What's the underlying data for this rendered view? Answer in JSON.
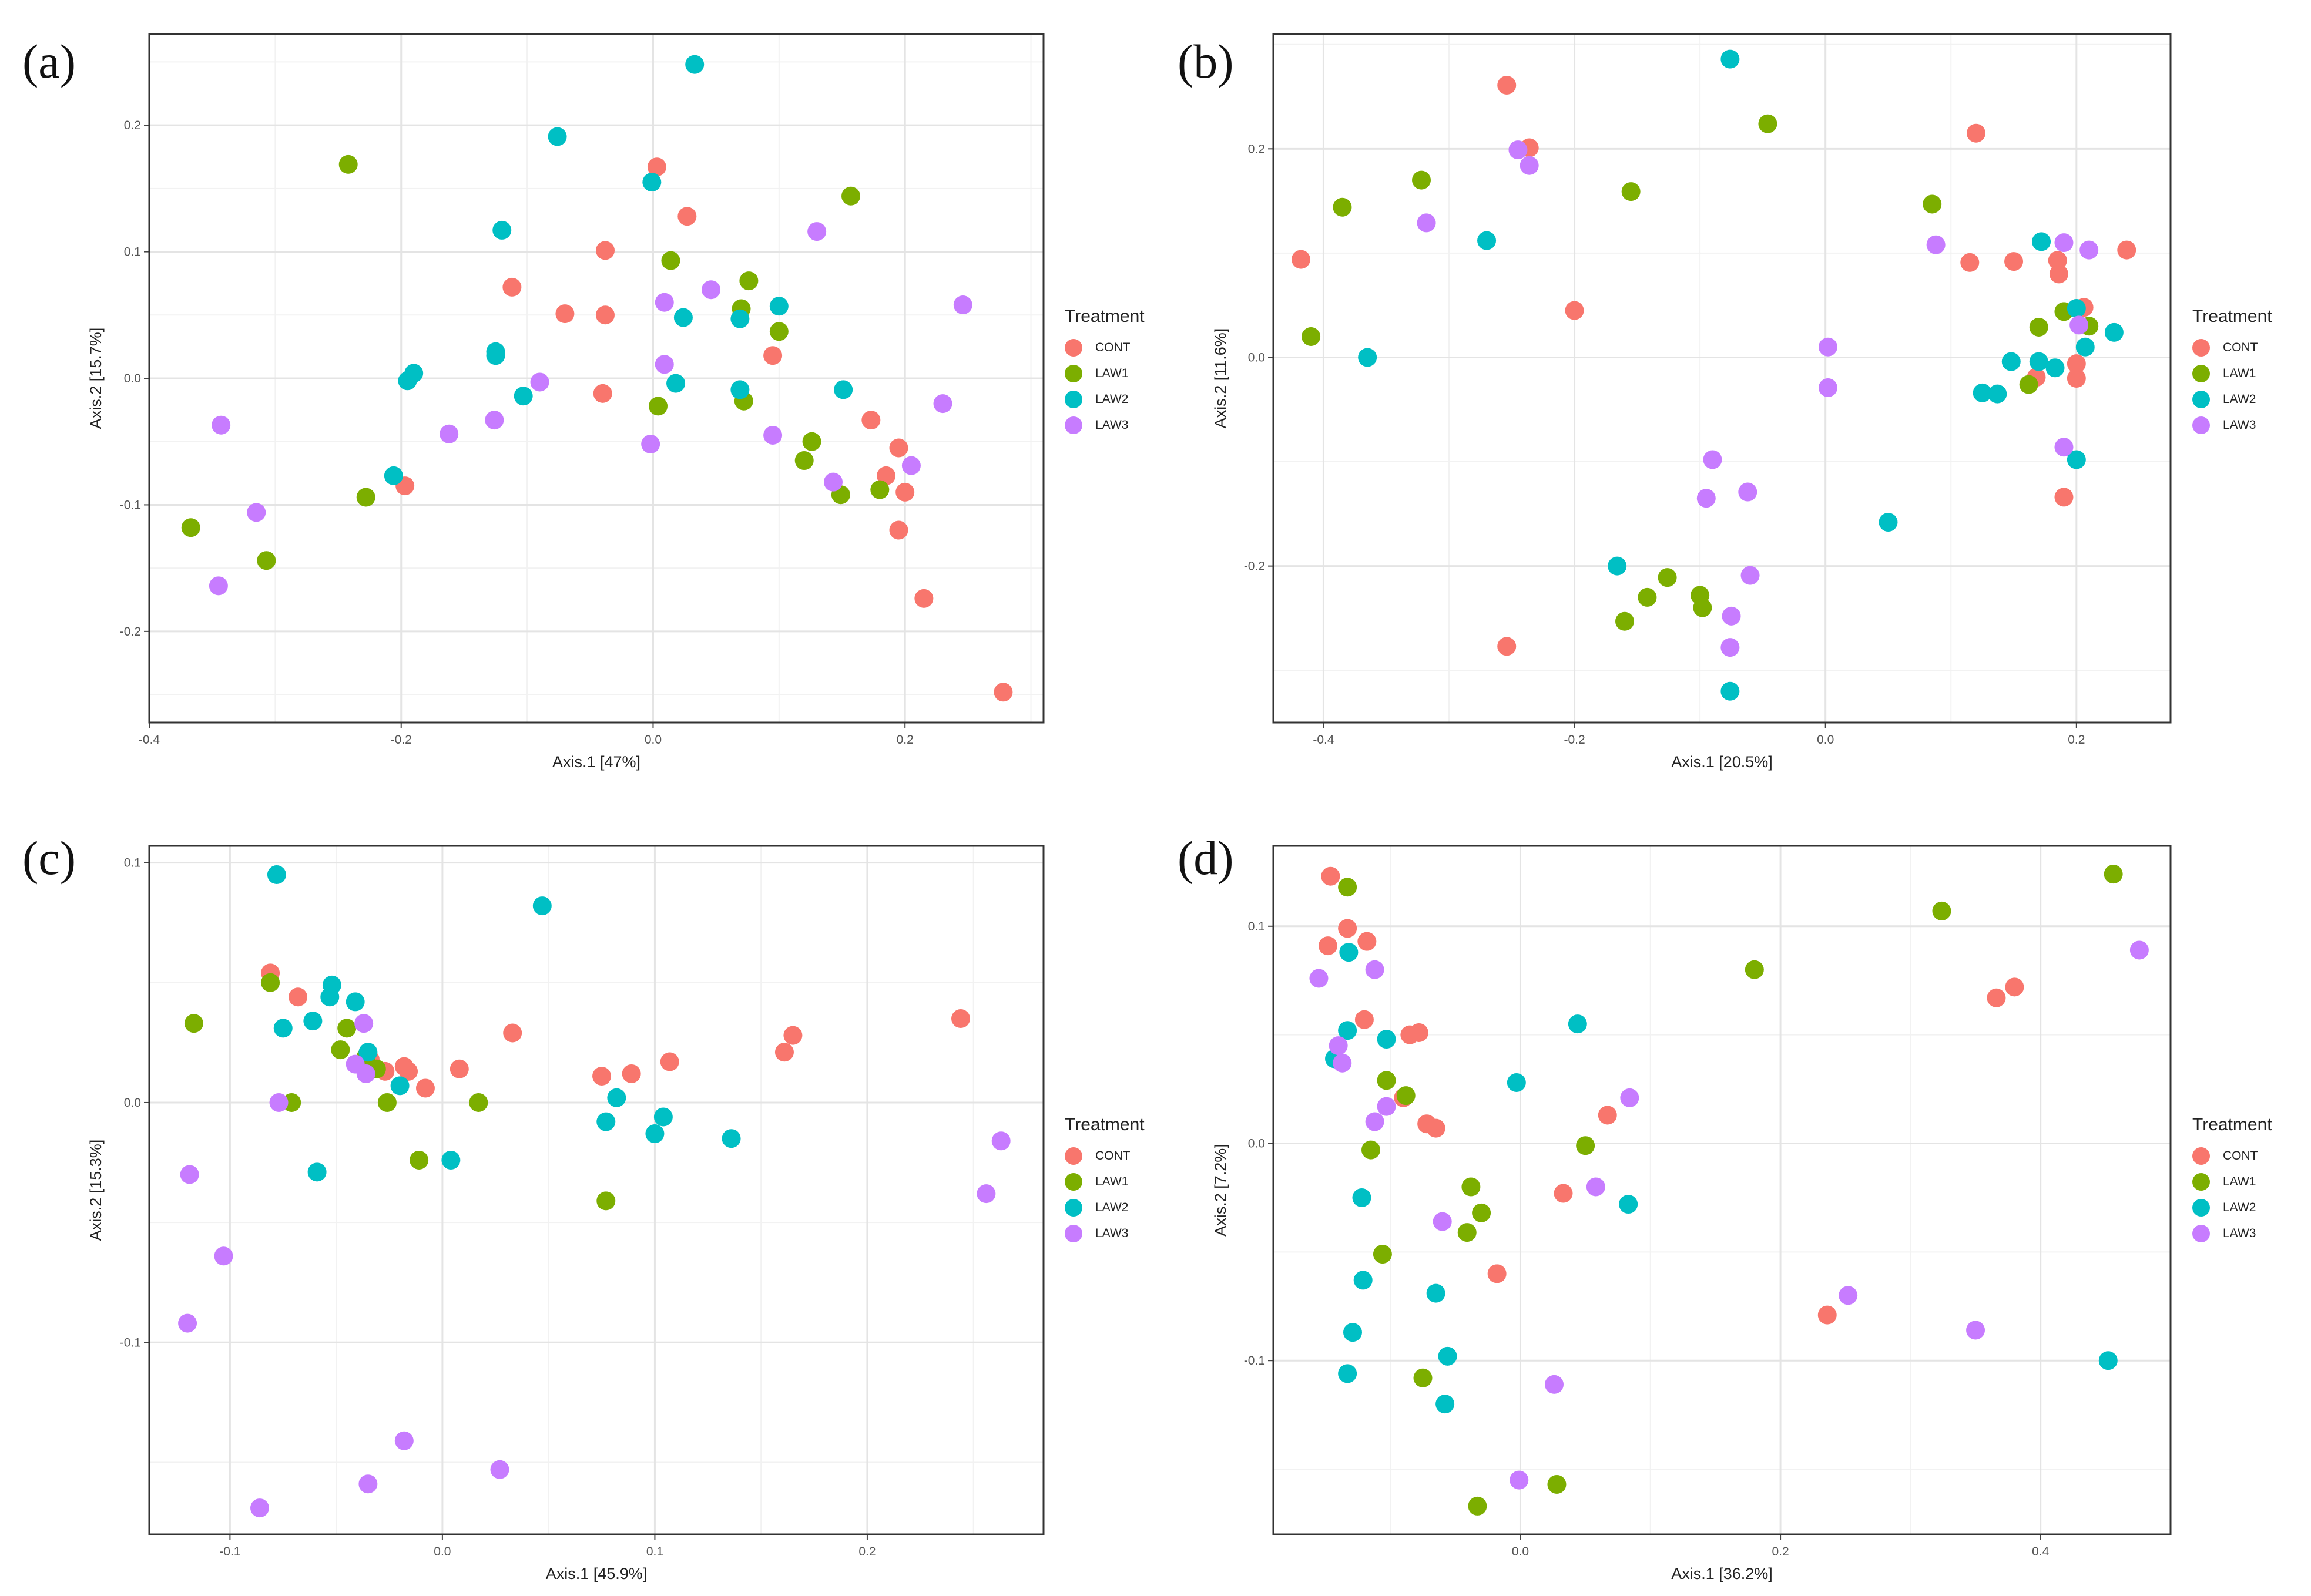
{
  "colors": {
    "CONT": "#F8766D",
    "LAW1": "#7CAE00",
    "LAW2": "#00BFC4",
    "LAW3": "#C77CFF"
  },
  "chart_data": [
    {
      "type": "scatter",
      "panel_label": "(a)",
      "xlabel": "Axis.1   [47%]",
      "ylabel": "Axis.2   [15.7%]",
      "xlim": [
        -0.4,
        0.31
      ],
      "ylim": [
        -0.272,
        0.272
      ],
      "xticks": [
        -0.4,
        -0.2,
        0.0,
        0.2
      ],
      "xtick_labels": [
        "-0.4",
        "-0.2",
        "0.0",
        "0.2"
      ],
      "yticks": [
        -0.2,
        -0.1,
        0.0,
        0.1,
        0.2
      ],
      "ytick_labels": [
        "-0.2",
        "-0.1",
        "0.0",
        "0.1",
        "0.2"
      ],
      "legend": {
        "title": "Treatment",
        "labels": [
          "CONT",
          "LAW1",
          "LAW2",
          "LAW3"
        ]
      },
      "series": [
        {
          "name": "CONT",
          "x": [
            0.003,
            0.027,
            -0.112,
            -0.07,
            -0.038,
            -0.038,
            -0.04,
            -0.197,
            0.095,
            0.173,
            0.195,
            0.185,
            0.2,
            0.195,
            0.215,
            0.278
          ],
          "y": [
            0.167,
            0.128,
            0.072,
            0.051,
            0.05,
            0.101,
            -0.012,
            -0.085,
            0.018,
            -0.033,
            -0.055,
            -0.077,
            -0.09,
            -0.12,
            -0.174,
            -0.248
          ]
        },
        {
          "name": "LAW1",
          "x": [
            -0.242,
            0.157,
            0.014,
            0.076,
            0.07,
            0.1,
            0.004,
            0.072,
            0.126,
            0.12,
            0.18,
            0.149,
            -0.228,
            -0.367,
            -0.307
          ],
          "y": [
            0.169,
            0.144,
            0.093,
            0.077,
            0.055,
            0.037,
            -0.022,
            -0.018,
            -0.05,
            -0.065,
            -0.088,
            -0.092,
            -0.094,
            -0.118,
            -0.144
          ]
        },
        {
          "name": "LAW2",
          "x": [
            0.033,
            -0.076,
            -0.001,
            -0.12,
            -0.125,
            -0.125,
            0.024,
            0.069,
            0.1,
            -0.19,
            -0.195,
            -0.103,
            0.018,
            0.069,
            0.151,
            -0.206
          ],
          "y": [
            0.248,
            0.191,
            0.155,
            0.117,
            0.021,
            0.018,
            0.048,
            0.047,
            0.057,
            0.004,
            -0.002,
            -0.014,
            -0.004,
            -0.009,
            -0.009,
            -0.077
          ]
        },
        {
          "name": "LAW3",
          "x": [
            0.13,
            0.046,
            0.009,
            0.246,
            0.009,
            -0.09,
            -0.126,
            -0.162,
            -0.002,
            0.095,
            0.23,
            0.143,
            0.205,
            -0.343,
            -0.315,
            -0.345
          ],
          "y": [
            0.116,
            0.07,
            0.06,
            0.058,
            0.011,
            -0.003,
            -0.033,
            -0.044,
            -0.052,
            -0.045,
            -0.02,
            -0.082,
            -0.069,
            -0.037,
            -0.106,
            -0.164
          ]
        }
      ]
    },
    {
      "type": "scatter",
      "panel_label": "(b)",
      "xlabel": "Axis.1   [20.5%]",
      "ylabel": "Axis.2   [11.6%]",
      "xlim": [
        -0.44,
        0.275
      ],
      "ylim": [
        -0.35,
        0.31
      ],
      "xticks": [
        -0.4,
        -0.2,
        0.0,
        0.2
      ],
      "xtick_labels": [
        "-0.4",
        "-0.2",
        "0.0",
        "0.2"
      ],
      "yticks": [
        -0.2,
        0.0,
        0.2
      ],
      "ytick_labels": [
        "-0.2",
        "0.0",
        "0.2"
      ],
      "legend": {
        "title": "Treatment",
        "labels": [
          "CONT",
          "LAW1",
          "LAW2",
          "LAW3"
        ]
      },
      "series": [
        {
          "name": "CONT",
          "x": [
            -0.254,
            -0.236,
            -0.418,
            -0.2,
            0.12,
            0.115,
            0.15,
            0.185,
            0.186,
            0.206,
            0.24,
            0.2,
            0.2,
            0.168,
            0.19,
            -0.254
          ],
          "y": [
            0.261,
            0.201,
            0.094,
            0.045,
            0.215,
            0.091,
            0.092,
            0.093,
            0.08,
            0.048,
            0.103,
            -0.006,
            -0.02,
            -0.019,
            -0.134,
            -0.277
          ]
        },
        {
          "name": "LAW1",
          "x": [
            -0.046,
            -0.385,
            -0.322,
            -0.155,
            0.085,
            -0.41,
            0.19,
            0.17,
            0.21,
            0.162,
            -0.126,
            -0.142,
            -0.1,
            -0.098,
            -0.16
          ],
          "y": [
            0.224,
            0.144,
            0.17,
            0.159,
            0.147,
            0.02,
            0.044,
            0.029,
            0.03,
            -0.026,
            -0.211,
            -0.23,
            -0.228,
            -0.24,
            -0.253
          ]
        },
        {
          "name": "LAW2",
          "x": [
            -0.076,
            -0.27,
            -0.365,
            0.172,
            0.2,
            0.207,
            0.23,
            0.148,
            0.17,
            0.183,
            0.125,
            0.137,
            0.2,
            0.05,
            -0.166,
            -0.076
          ],
          "y": [
            0.286,
            0.112,
            0.0,
            0.111,
            0.047,
            0.01,
            0.024,
            -0.004,
            -0.004,
            -0.01,
            -0.034,
            -0.035,
            -0.098,
            -0.158,
            -0.2,
            -0.32
          ]
        },
        {
          "name": "LAW3",
          "x": [
            -0.245,
            -0.236,
            -0.318,
            0.088,
            0.19,
            0.21,
            0.002,
            0.202,
            0.19,
            0.002,
            -0.09,
            -0.062,
            -0.095,
            -0.06,
            -0.075,
            -0.076
          ],
          "y": [
            0.199,
            0.184,
            0.129,
            0.108,
            0.11,
            0.103,
            0.01,
            0.031,
            -0.086,
            -0.029,
            -0.098,
            -0.129,
            -0.135,
            -0.209,
            -0.248,
            -0.278
          ]
        }
      ]
    },
    {
      "type": "scatter",
      "panel_label": "(c)",
      "xlabel": "Axis.1   [45.9%]",
      "ylabel": "Axis.2   [15.3%]",
      "xlim": [
        -0.138,
        0.283
      ],
      "ylim": [
        -0.18,
        0.107
      ],
      "xticks": [
        -0.1,
        0.0,
        0.1,
        0.2
      ],
      "xtick_labels": [
        "-0.1",
        "0.0",
        "0.1",
        "0.2"
      ],
      "yticks": [
        -0.1,
        0.0,
        0.1
      ],
      "ytick_labels": [
        "-0.1",
        "0.0",
        "0.1"
      ],
      "legend": {
        "title": "Treatment",
        "labels": [
          "CONT",
          "LAW1",
          "LAW2",
          "LAW3"
        ]
      },
      "series": [
        {
          "name": "CONT",
          "x": [
            -0.081,
            -0.068,
            -0.034,
            -0.018,
            -0.016,
            -0.027,
            -0.008,
            0.008,
            0.033,
            0.075,
            0.089,
            0.107,
            0.161,
            0.165,
            0.244
          ],
          "y": [
            0.054,
            0.044,
            0.018,
            0.015,
            0.013,
            0.013,
            0.006,
            0.014,
            0.029,
            0.011,
            0.012,
            0.017,
            0.021,
            0.028,
            0.035
          ]
        },
        {
          "name": "LAW1",
          "x": [
            -0.117,
            -0.081,
            -0.045,
            -0.048,
            -0.031,
            -0.026,
            -0.071,
            -0.036,
            -0.011,
            0.017,
            0.077
          ],
          "y": [
            0.033,
            0.05,
            0.031,
            0.022,
            0.014,
            0.0,
            0.0,
            0.019,
            -0.024,
            0.0,
            -0.041
          ]
        },
        {
          "name": "LAW2",
          "x": [
            -0.078,
            -0.052,
            -0.053,
            -0.041,
            -0.061,
            -0.075,
            -0.035,
            -0.02,
            0.047,
            0.082,
            0.104,
            0.1,
            0.136,
            0.077,
            0.004,
            -0.059
          ],
          "y": [
            0.095,
            0.049,
            0.044,
            0.042,
            0.034,
            0.031,
            0.021,
            0.007,
            0.082,
            0.002,
            -0.006,
            -0.013,
            -0.015,
            -0.008,
            -0.024,
            -0.029
          ]
        },
        {
          "name": "LAW3",
          "x": [
            -0.037,
            -0.036,
            -0.041,
            -0.077,
            0.263,
            0.256,
            -0.119,
            -0.103,
            -0.12,
            -0.018,
            -0.035,
            0.027,
            -0.086
          ],
          "y": [
            0.033,
            0.012,
            0.016,
            0.0,
            -0.016,
            -0.038,
            -0.03,
            -0.064,
            -0.092,
            -0.141,
            -0.159,
            -0.153,
            -0.169
          ]
        }
      ]
    },
    {
      "type": "scatter",
      "panel_label": "(d)",
      "xlabel": "Axis.1   [36.2%]",
      "ylabel": "Axis.2   [7.2%]",
      "xlim": [
        -0.19,
        0.5
      ],
      "ylim": [
        -0.18,
        0.137
      ],
      "xticks": [
        0.0,
        0.2,
        0.4
      ],
      "xtick_labels": [
        "0.0",
        "0.2",
        "0.4"
      ],
      "yticks": [
        -0.1,
        0.0,
        0.1
      ],
      "ytick_labels": [
        "-0.1",
        "0.0",
        "0.1"
      ],
      "legend": {
        "title": "Treatment",
        "labels": [
          "CONT",
          "LAW1",
          "LAW2",
          "LAW3"
        ]
      },
      "series": [
        {
          "name": "CONT",
          "x": [
            -0.146,
            -0.133,
            -0.118,
            -0.148,
            -0.12,
            -0.085,
            -0.078,
            -0.09,
            -0.072,
            -0.065,
            -0.018,
            0.033,
            0.067,
            0.366,
            0.38,
            0.236
          ],
          "y": [
            0.123,
            0.099,
            0.093,
            0.091,
            0.057,
            0.05,
            0.051,
            0.021,
            0.009,
            0.007,
            -0.06,
            -0.023,
            0.013,
            0.067,
            0.072,
            -0.079
          ]
        },
        {
          "name": "LAW1",
          "x": [
            -0.133,
            0.324,
            0.456,
            0.18,
            -0.103,
            -0.088,
            -0.115,
            -0.038,
            -0.03,
            -0.041,
            -0.106,
            0.05,
            -0.075,
            0.028,
            -0.033
          ],
          "y": [
            0.118,
            0.107,
            0.124,
            0.08,
            0.029,
            0.022,
            -0.003,
            -0.02,
            -0.032,
            -0.041,
            -0.051,
            -0.001,
            -0.108,
            -0.157,
            -0.167
          ]
        },
        {
          "name": "LAW2",
          "x": [
            -0.132,
            -0.133,
            -0.103,
            -0.143,
            0.044,
            -0.003,
            -0.122,
            -0.121,
            -0.129,
            -0.133,
            -0.065,
            -0.056,
            -0.058,
            0.083,
            0.452
          ],
          "y": [
            0.088,
            0.052,
            0.048,
            0.039,
            0.055,
            0.028,
            -0.025,
            -0.063,
            -0.087,
            -0.106,
            -0.069,
            -0.098,
            -0.12,
            -0.028,
            -0.1
          ]
        },
        {
          "name": "LAW3",
          "x": [
            -0.155,
            -0.112,
            -0.14,
            -0.137,
            -0.112,
            -0.103,
            0.084,
            -0.06,
            0.058,
            0.026,
            -0.001,
            0.252,
            0.35,
            0.476
          ],
          "y": [
            0.076,
            0.08,
            0.045,
            0.037,
            0.01,
            0.017,
            0.021,
            -0.036,
            -0.02,
            -0.111,
            -0.155,
            -0.07,
            -0.086,
            0.089
          ]
        }
      ]
    }
  ]
}
